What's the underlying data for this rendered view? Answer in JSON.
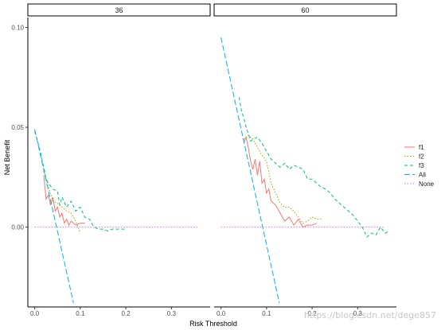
{
  "chart_data": {
    "type": "line",
    "xlabel": "Risk Threshold",
    "ylabel": "Net Benefit",
    "xlim": [
      -0.015,
      0.385
    ],
    "ylim": [
      -0.04,
      0.105
    ],
    "x_ticks": [
      0.0,
      0.1,
      0.2,
      0.3
    ],
    "x_tick_labels": [
      "0.0",
      "0.1",
      "0.2",
      "0.3"
    ],
    "y_ticks": [
      0.0,
      0.05,
      0.1
    ],
    "y_tick_labels": [
      "0.00",
      "0.05",
      "0.10"
    ],
    "grid": false,
    "legend_position": "right",
    "legend": [
      {
        "label": "f1",
        "color": "#F8766D",
        "dash": "solid"
      },
      {
        "label": "f2",
        "color": "#A3A500",
        "dash": "dotted"
      },
      {
        "label": "f3",
        "color": "#00BF7D",
        "dash": "dashed"
      },
      {
        "label": "All",
        "color": "#00B0F6",
        "dash": "longdash"
      },
      {
        "label": "None",
        "color": "#E76BF3",
        "dash": "dotted"
      }
    ],
    "panels": [
      {
        "label": "36",
        "series": [
          {
            "name": "f1",
            "x": [
              0.02,
              0.025,
              0.03,
              0.035,
              0.04,
              0.045,
              0.05,
              0.055,
              0.06,
              0.065,
              0.07,
              0.075,
              0.08,
              0.09,
              0.1,
              0.11
            ],
            "y": [
              0.026,
              0.014,
              0.016,
              0.011,
              0.015,
              0.008,
              0.01,
              0.005,
              0.007,
              0.002,
              0.004,
              0.001,
              0.003,
              0.001,
              0.002,
              0.002
            ]
          },
          {
            "name": "f2",
            "x": [
              0.02,
              0.03,
              0.04,
              0.05,
              0.06,
              0.07,
              0.08,
              0.09,
              0.1
            ],
            "y": [
              0.028,
              0.02,
              0.013,
              0.012,
              0.01,
              0.008,
              0.007,
              0.003,
              -0.003
            ]
          },
          {
            "name": "f3",
            "x": [
              0.0,
              0.01,
              0.02,
              0.025,
              0.03,
              0.04,
              0.05,
              0.055,
              0.06,
              0.07,
              0.08,
              0.09,
              0.1,
              0.11,
              0.12,
              0.13,
              0.14,
              0.15,
              0.16,
              0.17,
              0.2
            ],
            "y": [
              0.048,
              0.04,
              0.03,
              0.024,
              0.022,
              0.019,
              0.018,
              0.011,
              0.015,
              0.01,
              0.013,
              0.008,
              0.01,
              0.005,
              0.004,
              0.0,
              -0.001,
              -0.001,
              -0.002,
              -0.001,
              -0.001
            ]
          },
          {
            "name": "All",
            "x": [
              0.0,
              0.085
            ],
            "y": [
              0.049,
              -0.038
            ]
          },
          {
            "name": "None",
            "x": [
              0.0,
              0.36
            ],
            "y": [
              0.0,
              0.0
            ]
          }
        ]
      },
      {
        "label": "60",
        "series": [
          {
            "name": "f1",
            "x": [
              0.05,
              0.055,
              0.06,
              0.065,
              0.07,
              0.075,
              0.08,
              0.085,
              0.09,
              0.095,
              0.1,
              0.105,
              0.11,
              0.12,
              0.13,
              0.14,
              0.15,
              0.16,
              0.17,
              0.18,
              0.19,
              0.2,
              0.21
            ],
            "y": [
              0.042,
              0.045,
              0.04,
              0.033,
              0.029,
              0.034,
              0.026,
              0.033,
              0.022,
              0.024,
              0.017,
              0.019,
              0.013,
              0.011,
              0.007,
              0.003,
              0.005,
              0.001,
              0.004,
              0.0,
              0.001,
              0.001,
              0.002
            ]
          },
          {
            "name": "f2",
            "x": [
              0.05,
              0.06,
              0.07,
              0.08,
              0.09,
              0.1,
              0.11,
              0.12,
              0.13,
              0.14,
              0.15,
              0.16,
              0.17,
              0.18,
              0.19,
              0.2,
              0.21,
              0.22
            ],
            "y": [
              0.044,
              0.046,
              0.044,
              0.04,
              0.036,
              0.033,
              0.022,
              0.017,
              0.012,
              0.01,
              0.01,
              0.008,
              0.005,
              0.002,
              0.003,
              0.005,
              0.004,
              0.004
            ]
          },
          {
            "name": "f3",
            "x": [
              0.04,
              0.045,
              0.05,
              0.055,
              0.06,
              0.065,
              0.07,
              0.08,
              0.09,
              0.1,
              0.11,
              0.12,
              0.13,
              0.14,
              0.15,
              0.16,
              0.17,
              0.18,
              0.19,
              0.2,
              0.21,
              0.22,
              0.23,
              0.24,
              0.25,
              0.26,
              0.27,
              0.28,
              0.29,
              0.3,
              0.31,
              0.32,
              0.33,
              0.34,
              0.35,
              0.36,
              0.37
            ],
            "y": [
              0.065,
              0.058,
              0.055,
              0.05,
              0.047,
              0.043,
              0.044,
              0.045,
              0.042,
              0.038,
              0.034,
              0.032,
              0.03,
              0.032,
              0.029,
              0.031,
              0.03,
              0.029,
              0.024,
              0.024,
              0.022,
              0.02,
              0.019,
              0.017,
              0.014,
              0.012,
              0.01,
              0.008,
              0.006,
              0.003,
              0.0,
              -0.005,
              -0.003,
              -0.004,
              0.0,
              -0.003,
              -0.002
            ]
          },
          {
            "name": "All",
            "x": [
              0.0,
              0.128
            ],
            "y": [
              0.095,
              -0.038
            ]
          },
          {
            "name": "None",
            "x": [
              0.0,
              0.36
            ],
            "y": [
              0.0,
              0.0
            ]
          }
        ]
      }
    ]
  },
  "watermark": "https://blog.csdn.net/dege857"
}
